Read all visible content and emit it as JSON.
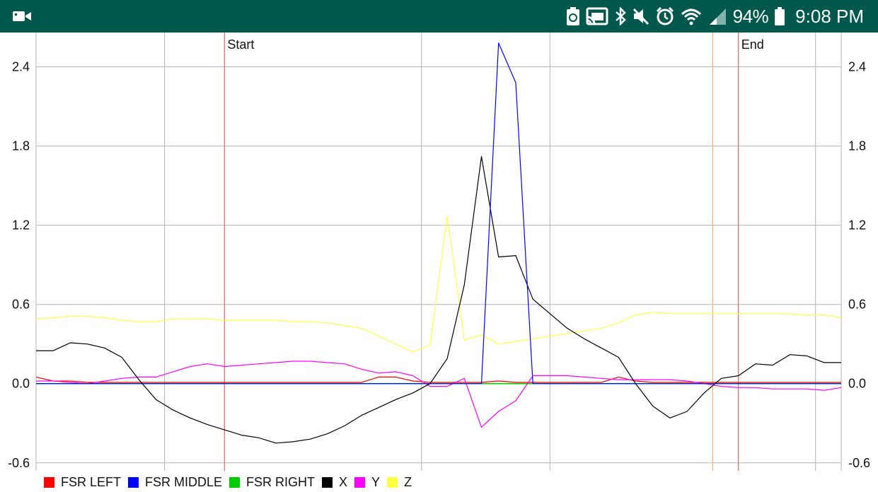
{
  "status_bar": {
    "battery_percent": "94%",
    "time": "9:08 PM",
    "left_icons": [
      "video-camera-icon"
    ],
    "right_icons": [
      "battery-saver-icon",
      "cast-icon",
      "bluetooth-icon",
      "mute-icon",
      "alarm-icon",
      "wifi-icon",
      "cellular-signal-icon",
      "battery-icon"
    ],
    "background_color": "#00574b"
  },
  "chart_data": {
    "type": "line",
    "x": [
      0,
      1,
      2,
      3,
      4,
      5,
      6,
      7,
      8,
      9,
      10,
      11,
      12,
      13,
      14,
      15,
      16,
      17,
      18,
      19,
      20,
      21,
      22,
      23,
      24,
      25,
      26,
      27,
      28,
      29,
      30,
      31,
      32,
      33,
      34,
      35,
      36,
      37,
      38,
      39,
      40,
      41,
      42,
      43,
      44,
      45,
      46,
      47
    ],
    "xlim": [
      0,
      47
    ],
    "ylim": [
      -0.66,
      2.66
    ],
    "yticks": [
      "2.4",
      "1.8",
      "1.2",
      "0.6",
      "0.0",
      "-0.6"
    ],
    "ytick_values": [
      2.4,
      1.8,
      1.2,
      0.6,
      0.0,
      -0.6
    ],
    "vertical_grid_x": [
      0,
      7.5,
      22.5,
      30,
      39.5,
      45.5
    ],
    "markers": [
      {
        "label": "Start",
        "x": 11,
        "color": "#e06666"
      },
      {
        "label": "",
        "x": 39.5,
        "color": "#f0b27a"
      },
      {
        "label": "End",
        "x": 41,
        "color": "#e06666"
      }
    ],
    "grid": true,
    "legend_position": "bottom-left",
    "series": [
      {
        "name": "FSR LEFT",
        "color": "#ff0000",
        "values": [
          0.05,
          0.02,
          0.02,
          0.01,
          0.01,
          0.01,
          0.01,
          0.01,
          0.01,
          0.01,
          0.01,
          0.01,
          0.01,
          0.01,
          0.01,
          0.01,
          0.01,
          0.01,
          0.01,
          0.01,
          0.05,
          0.05,
          0.02,
          0.01,
          0.01,
          0.01,
          0.01,
          0.02,
          0.01,
          0.01,
          0.01,
          0.01,
          0.01,
          0.01,
          0.05,
          0.02,
          0.01,
          0.01,
          0.01,
          0.01,
          0.01,
          0.01,
          0.01,
          0.01,
          0.01,
          0.01,
          0.01,
          0.01
        ]
      },
      {
        "name": "FSR MIDDLE",
        "color": "#0000ff",
        "values": [
          0,
          0,
          0,
          0,
          0,
          0,
          0,
          0,
          0,
          0,
          0,
          0,
          0,
          0,
          0,
          0,
          0,
          0,
          0,
          0,
          0,
          0,
          0,
          0,
          0,
          0,
          0,
          2.58,
          2.28,
          0,
          0,
          0,
          0,
          0,
          0,
          0,
          0,
          0,
          0,
          0,
          0,
          0,
          0,
          0,
          0,
          0,
          0,
          0
        ]
      },
      {
        "name": "FSR RIGHT",
        "color": "#00cc00",
        "values": [
          0,
          0,
          0,
          0,
          0,
          0,
          0,
          0,
          0,
          0,
          0,
          0,
          0,
          0,
          0,
          0,
          0,
          0,
          0,
          0,
          0,
          0,
          0,
          0,
          0,
          0,
          0,
          0,
          0,
          0,
          0,
          0,
          0,
          0,
          0,
          0,
          0,
          0,
          0,
          0,
          0,
          0,
          0,
          0,
          0,
          0,
          0,
          0
        ]
      },
      {
        "name": "X",
        "color": "#000000",
        "values": [
          0.25,
          0.25,
          0.31,
          0.3,
          0.27,
          0.2,
          0.03,
          -0.12,
          -0.2,
          -0.26,
          -0.31,
          -0.35,
          -0.39,
          -0.41,
          -0.45,
          -0.44,
          -0.42,
          -0.38,
          -0.32,
          -0.24,
          -0.18,
          -0.12,
          -0.07,
          0.0,
          0.19,
          0.75,
          1.72,
          0.96,
          0.97,
          0.64,
          0.53,
          0.42,
          0.34,
          0.27,
          0.2,
          0.0,
          -0.17,
          -0.26,
          -0.21,
          -0.07,
          0.04,
          0.06,
          0.15,
          0.14,
          0.22,
          0.21,
          0.16,
          0.16
        ]
      },
      {
        "name": "Y",
        "color": "#ff00ff",
        "values": [
          0.02,
          0.02,
          0.01,
          0.0,
          0.02,
          0.04,
          0.05,
          0.05,
          0.09,
          0.13,
          0.15,
          0.13,
          0.14,
          0.15,
          0.16,
          0.17,
          0.17,
          0.16,
          0.15,
          0.11,
          0.08,
          0.09,
          0.06,
          -0.02,
          -0.02,
          0.04,
          -0.33,
          -0.21,
          -0.13,
          0.06,
          0.06,
          0.06,
          0.05,
          0.04,
          0.03,
          0.03,
          0.03,
          0.03,
          0.02,
          0.0,
          -0.02,
          -0.03,
          -0.03,
          -0.04,
          -0.04,
          -0.04,
          -0.05,
          -0.03
        ]
      },
      {
        "name": "Z",
        "color": "#ffff44",
        "values": [
          0.49,
          0.5,
          0.51,
          0.51,
          0.5,
          0.48,
          0.47,
          0.47,
          0.49,
          0.49,
          0.49,
          0.48,
          0.48,
          0.48,
          0.48,
          0.47,
          0.47,
          0.46,
          0.44,
          0.42,
          0.36,
          0.3,
          0.24,
          0.29,
          1.27,
          0.33,
          0.37,
          0.3,
          0.32,
          0.34,
          0.36,
          0.38,
          0.4,
          0.42,
          0.46,
          0.52,
          0.54,
          0.53,
          0.53,
          0.53,
          0.53,
          0.53,
          0.53,
          0.53,
          0.53,
          0.52,
          0.52,
          0.5
        ]
      }
    ]
  }
}
